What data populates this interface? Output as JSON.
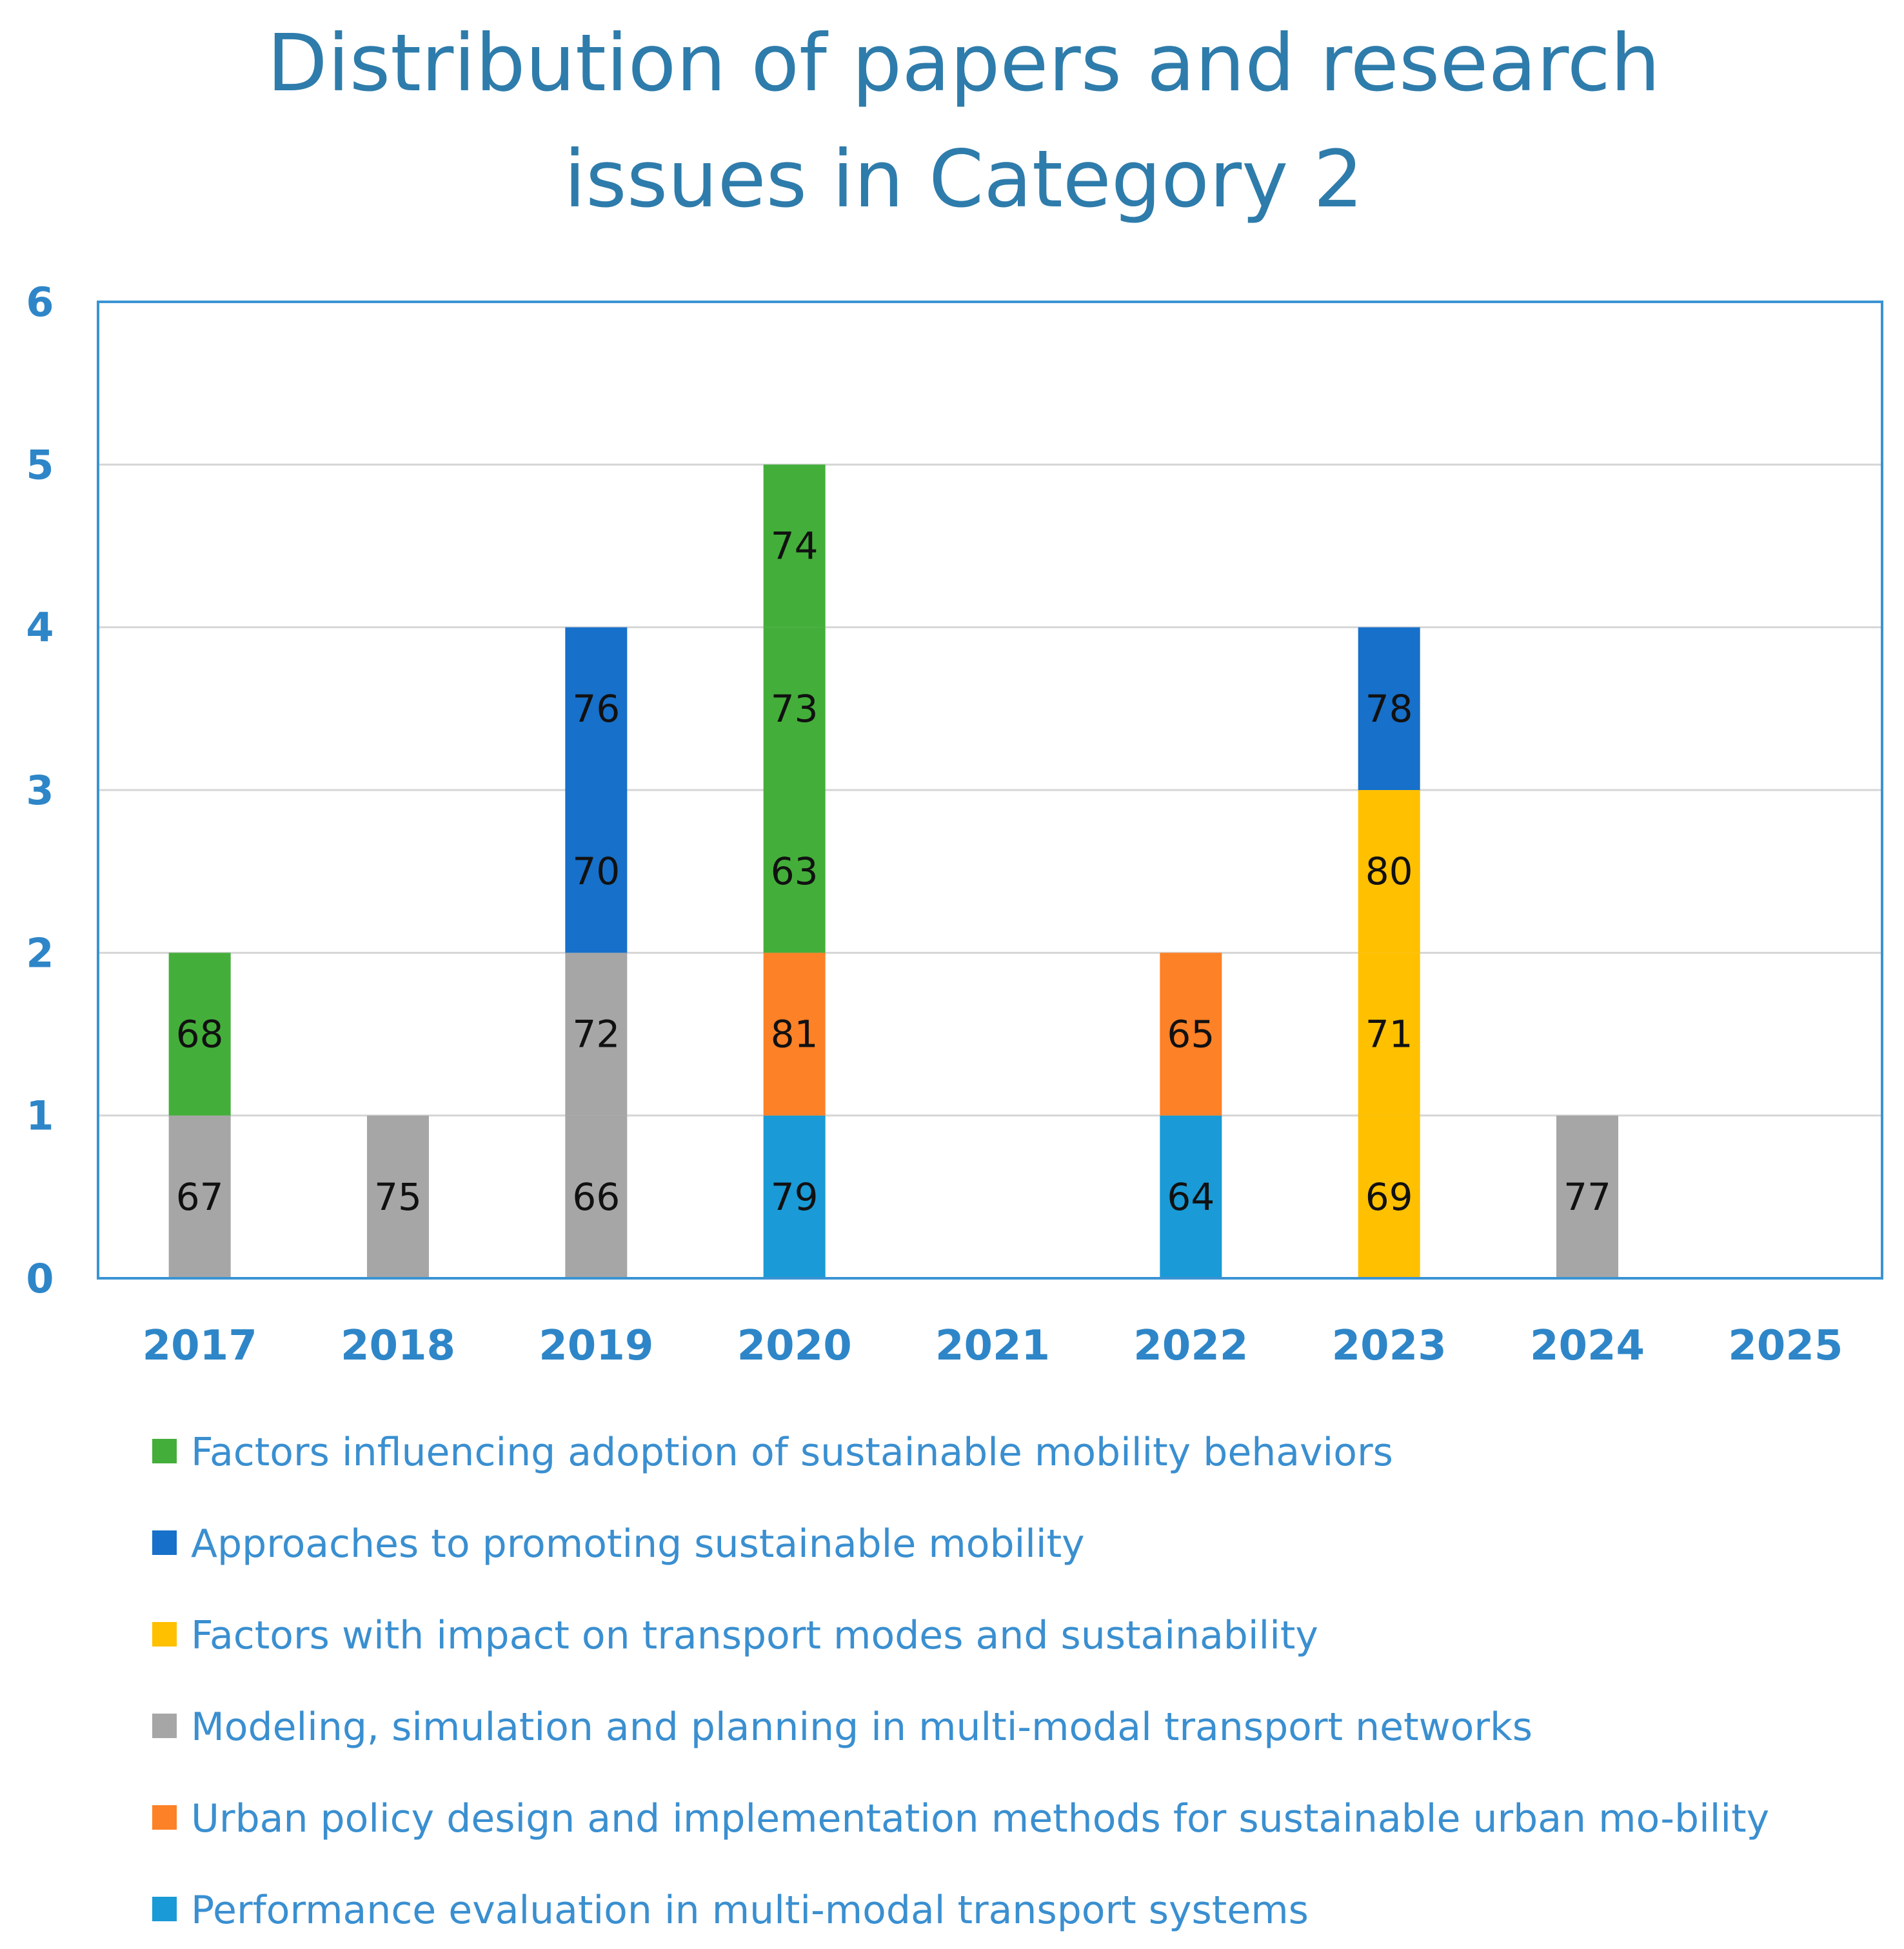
{
  "chart_data": {
    "type": "bar",
    "stacked": true,
    "title_lines": [
      "Distribution of papers and research",
      "issues in Category 2"
    ],
    "categories": [
      "2017",
      "2018",
      "2019",
      "2020",
      "2021",
      "2022",
      "2023",
      "2024",
      "2025"
    ],
    "ylim": [
      0,
      6
    ],
    "yticks": [
      "0",
      "1",
      "2",
      "3",
      "4",
      "5",
      "6"
    ],
    "grid": true,
    "legend_position": "bottom",
    "series": [
      {
        "name": "Performance evaluation in multi-modal transport systems",
        "color": "#1a9ad6"
      },
      {
        "name": "Urban policy design and implementation methods for sustainable urban mo-bility",
        "color": "#fd8126"
      },
      {
        "name": "Modeling, simulation and planning in multi-modal transport networks",
        "color": "#a6a6a6"
      },
      {
        "name": "Factors with impact on transport modes and sustainability",
        "color": "#ffc000"
      },
      {
        "name": "Approaches to promoting sustainable mobility",
        "color": "#1770c9"
      },
      {
        "name": "Factors influencing adoption of sustainable mobility behaviors",
        "color": "#44ae3a"
      }
    ],
    "legend_order": [
      5,
      4,
      3,
      2,
      1,
      0
    ],
    "stacks": [
      {
        "category": "2017",
        "segments": [
          {
            "series": 2,
            "label": "67"
          },
          {
            "series": 5,
            "label": "68"
          }
        ]
      },
      {
        "category": "2018",
        "segments": [
          {
            "series": 2,
            "label": "75"
          }
        ]
      },
      {
        "category": "2019",
        "segments": [
          {
            "series": 2,
            "label": "66"
          },
          {
            "series": 2,
            "label": "72"
          },
          {
            "series": 4,
            "label": "70"
          },
          {
            "series": 4,
            "label": "76"
          }
        ]
      },
      {
        "category": "2020",
        "segments": [
          {
            "series": 0,
            "label": "79"
          },
          {
            "series": 1,
            "label": "81"
          },
          {
            "series": 5,
            "label": "63"
          },
          {
            "series": 5,
            "label": "73"
          },
          {
            "series": 5,
            "label": "74"
          }
        ]
      },
      {
        "category": "2021",
        "segments": []
      },
      {
        "category": "2022",
        "segments": [
          {
            "series": 0,
            "label": "64"
          },
          {
            "series": 1,
            "label": "65"
          }
        ]
      },
      {
        "category": "2023",
        "segments": [
          {
            "series": 3,
            "label": "69"
          },
          {
            "series": 3,
            "label": "71"
          },
          {
            "series": 3,
            "label": "80"
          },
          {
            "series": 4,
            "label": "78"
          }
        ]
      },
      {
        "category": "2024",
        "segments": [
          {
            "series": 2,
            "label": "77"
          }
        ]
      },
      {
        "category": "2025",
        "segments": []
      }
    ]
  }
}
